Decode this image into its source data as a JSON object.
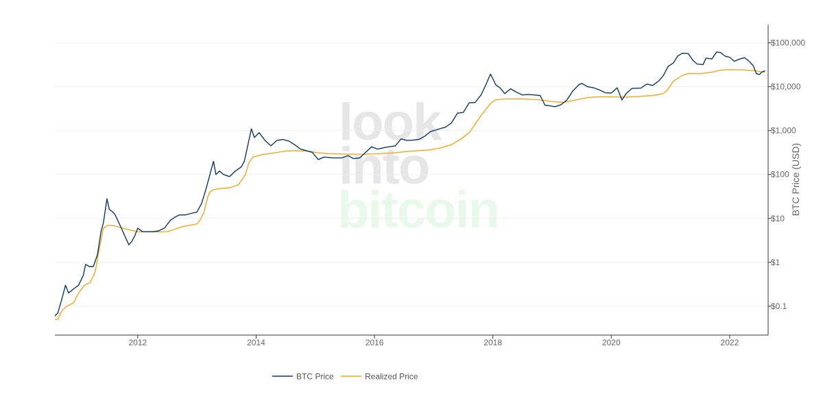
{
  "chart_data": {
    "type": "line",
    "title": "",
    "xlabel": "",
    "ylabel": "BTC Price (USD)",
    "y_scale": "log",
    "ylim": [
      0.022,
      260000
    ],
    "xlim": [
      2010.6,
      2022.65
    ],
    "grid": true,
    "legend_position": "bottom-center",
    "x_ticks": [
      {
        "value": 2012,
        "label": "2012"
      },
      {
        "value": 2014,
        "label": "2014"
      },
      {
        "value": 2016,
        "label": "2016"
      },
      {
        "value": 2018,
        "label": "2018"
      },
      {
        "value": 2020,
        "label": "2020"
      },
      {
        "value": 2022,
        "label": "2022"
      }
    ],
    "y_ticks": [
      {
        "value": 0.1,
        "label": "$0.1"
      },
      {
        "value": 1,
        "label": "$1"
      },
      {
        "value": 10,
        "label": "$10"
      },
      {
        "value": 100,
        "label": "$100"
      },
      {
        "value": 1000,
        "label": "$1,000"
      },
      {
        "value": 10000,
        "label": "$10,000"
      },
      {
        "value": 100000,
        "label": "$100,000"
      }
    ],
    "series": [
      {
        "name": "BTC Price",
        "color": "#0b3766",
        "points": [
          [
            2010.6,
            0.06
          ],
          [
            2010.65,
            0.07
          ],
          [
            2010.72,
            0.15
          ],
          [
            2010.78,
            0.3
          ],
          [
            2010.83,
            0.2
          ],
          [
            2010.92,
            0.25
          ],
          [
            2011.0,
            0.3
          ],
          [
            2011.08,
            0.5
          ],
          [
            2011.12,
            0.9
          ],
          [
            2011.18,
            0.8
          ],
          [
            2011.25,
            0.8
          ],
          [
            2011.32,
            1.5
          ],
          [
            2011.38,
            5
          ],
          [
            2011.42,
            8
          ],
          [
            2011.45,
            15
          ],
          [
            2011.48,
            28
          ],
          [
            2011.52,
            16
          ],
          [
            2011.58,
            14
          ],
          [
            2011.62,
            12
          ],
          [
            2011.68,
            8
          ],
          [
            2011.75,
            5
          ],
          [
            2011.8,
            3.5
          ],
          [
            2011.85,
            2.5
          ],
          [
            2011.9,
            3
          ],
          [
            2011.95,
            4
          ],
          [
            2012.0,
            6
          ],
          [
            2012.08,
            5
          ],
          [
            2012.15,
            5
          ],
          [
            2012.25,
            5
          ],
          [
            2012.35,
            5.2
          ],
          [
            2012.45,
            6
          ],
          [
            2012.55,
            9
          ],
          [
            2012.62,
            10.5
          ],
          [
            2012.7,
            12
          ],
          [
            2012.8,
            12
          ],
          [
            2012.9,
            13
          ],
          [
            2013.0,
            14
          ],
          [
            2013.08,
            22
          ],
          [
            2013.15,
            45
          ],
          [
            2013.22,
            100
          ],
          [
            2013.28,
            200
          ],
          [
            2013.32,
            100
          ],
          [
            2013.38,
            120
          ],
          [
            2013.45,
            100
          ],
          [
            2013.55,
            90
          ],
          [
            2013.65,
            120
          ],
          [
            2013.75,
            150
          ],
          [
            2013.8,
            200
          ],
          [
            2013.85,
            400
          ],
          [
            2013.92,
            1100
          ],
          [
            2013.97,
            700
          ],
          [
            2014.05,
            900
          ],
          [
            2014.15,
            600
          ],
          [
            2014.25,
            450
          ],
          [
            2014.35,
            600
          ],
          [
            2014.45,
            630
          ],
          [
            2014.55,
            580
          ],
          [
            2014.65,
            480
          ],
          [
            2014.75,
            380
          ],
          [
            2014.85,
            350
          ],
          [
            2014.95,
            320
          ],
          [
            2015.05,
            220
          ],
          [
            2015.15,
            250
          ],
          [
            2015.3,
            240
          ],
          [
            2015.45,
            240
          ],
          [
            2015.55,
            270
          ],
          [
            2015.65,
            230
          ],
          [
            2015.75,
            240
          ],
          [
            2015.85,
            320
          ],
          [
            2015.95,
            430
          ],
          [
            2016.05,
            380
          ],
          [
            2016.2,
            420
          ],
          [
            2016.35,
            450
          ],
          [
            2016.45,
            650
          ],
          [
            2016.55,
            600
          ],
          [
            2016.65,
            610
          ],
          [
            2016.75,
            630
          ],
          [
            2016.85,
            750
          ],
          [
            2016.95,
            960
          ],
          [
            2017.0,
            1000
          ],
          [
            2017.1,
            1100
          ],
          [
            2017.2,
            1200
          ],
          [
            2017.3,
            1500
          ],
          [
            2017.4,
            2500
          ],
          [
            2017.5,
            2600
          ],
          [
            2017.6,
            4300
          ],
          [
            2017.7,
            4400
          ],
          [
            2017.8,
            6500
          ],
          [
            2017.88,
            11000
          ],
          [
            2017.96,
            19500
          ],
          [
            2018.05,
            11000
          ],
          [
            2018.12,
            9500
          ],
          [
            2018.2,
            7000
          ],
          [
            2018.3,
            9000
          ],
          [
            2018.4,
            7500
          ],
          [
            2018.5,
            6500
          ],
          [
            2018.6,
            6700
          ],
          [
            2018.7,
            6500
          ],
          [
            2018.8,
            6300
          ],
          [
            2018.88,
            3800
          ],
          [
            2018.96,
            3700
          ],
          [
            2019.05,
            3500
          ],
          [
            2019.15,
            3900
          ],
          [
            2019.25,
            5000
          ],
          [
            2019.35,
            8000
          ],
          [
            2019.45,
            11000
          ],
          [
            2019.5,
            12000
          ],
          [
            2019.6,
            10000
          ],
          [
            2019.7,
            9500
          ],
          [
            2019.8,
            8500
          ],
          [
            2019.9,
            7300
          ],
          [
            2020.0,
            7200
          ],
          [
            2020.1,
            9500
          ],
          [
            2020.18,
            5000
          ],
          [
            2020.25,
            7000
          ],
          [
            2020.35,
            9200
          ],
          [
            2020.5,
            9300
          ],
          [
            2020.6,
            11500
          ],
          [
            2020.7,
            10700
          ],
          [
            2020.8,
            13500
          ],
          [
            2020.88,
            18000
          ],
          [
            2020.96,
            29000
          ],
          [
            2021.05,
            35000
          ],
          [
            2021.12,
            50000
          ],
          [
            2021.2,
            58000
          ],
          [
            2021.3,
            57000
          ],
          [
            2021.38,
            40000
          ],
          [
            2021.45,
            33000
          ],
          [
            2021.55,
            32000
          ],
          [
            2021.6,
            45000
          ],
          [
            2021.7,
            43000
          ],
          [
            2021.78,
            62000
          ],
          [
            2021.85,
            60000
          ],
          [
            2021.92,
            50000
          ],
          [
            2022.0,
            47000
          ],
          [
            2022.08,
            38000
          ],
          [
            2022.15,
            42000
          ],
          [
            2022.25,
            46000
          ],
          [
            2022.33,
            38000
          ],
          [
            2022.4,
            30000
          ],
          [
            2022.45,
            20000
          ],
          [
            2022.5,
            19000
          ],
          [
            2022.55,
            22000
          ],
          [
            2022.6,
            23000
          ]
        ]
      },
      {
        "name": "Realized Price",
        "color": "#f7a41d",
        "points": [
          [
            2010.6,
            0.05
          ],
          [
            2010.65,
            0.05
          ],
          [
            2010.72,
            0.08
          ],
          [
            2010.8,
            0.1
          ],
          [
            2010.92,
            0.12
          ],
          [
            2011.0,
            0.2
          ],
          [
            2011.1,
            0.3
          ],
          [
            2011.2,
            0.35
          ],
          [
            2011.28,
            0.6
          ],
          [
            2011.35,
            2
          ],
          [
            2011.42,
            6
          ],
          [
            2011.5,
            7
          ],
          [
            2011.6,
            6.8
          ],
          [
            2011.75,
            6
          ],
          [
            2011.85,
            5.5
          ],
          [
            2012.0,
            5
          ],
          [
            2012.25,
            4.9
          ],
          [
            2012.5,
            5
          ],
          [
            2012.6,
            5.5
          ],
          [
            2012.75,
            6.5
          ],
          [
            2013.0,
            7.5
          ],
          [
            2013.05,
            9
          ],
          [
            2013.12,
            14
          ],
          [
            2013.18,
            30
          ],
          [
            2013.22,
            40
          ],
          [
            2013.28,
            45
          ],
          [
            2013.4,
            48
          ],
          [
            2013.55,
            50
          ],
          [
            2013.7,
            58
          ],
          [
            2013.82,
            100
          ],
          [
            2013.88,
            190
          ],
          [
            2013.95,
            250
          ],
          [
            2014.1,
            285
          ],
          [
            2014.3,
            310
          ],
          [
            2014.5,
            345
          ],
          [
            2014.7,
            350
          ],
          [
            2014.9,
            340
          ],
          [
            2015.0,
            320
          ],
          [
            2015.2,
            300
          ],
          [
            2015.4,
            295
          ],
          [
            2015.6,
            290
          ],
          [
            2015.8,
            290
          ],
          [
            2016.0,
            295
          ],
          [
            2016.3,
            310
          ],
          [
            2016.6,
            340
          ],
          [
            2016.9,
            360
          ],
          [
            2017.1,
            400
          ],
          [
            2017.3,
            480
          ],
          [
            2017.5,
            700
          ],
          [
            2017.6,
            900
          ],
          [
            2017.7,
            1400
          ],
          [
            2017.8,
            2200
          ],
          [
            2017.88,
            3000
          ],
          [
            2017.96,
            4200
          ],
          [
            2018.05,
            5100
          ],
          [
            2018.25,
            5300
          ],
          [
            2018.5,
            5300
          ],
          [
            2018.75,
            5100
          ],
          [
            2019.0,
            4600
          ],
          [
            2019.2,
            4400
          ],
          [
            2019.4,
            5000
          ],
          [
            2019.6,
            5700
          ],
          [
            2019.8,
            5900
          ],
          [
            2020.0,
            5900
          ],
          [
            2020.25,
            5800
          ],
          [
            2020.5,
            6100
          ],
          [
            2020.7,
            6300
          ],
          [
            2020.88,
            7000
          ],
          [
            2020.95,
            8500
          ],
          [
            2021.05,
            13500
          ],
          [
            2021.2,
            18000
          ],
          [
            2021.3,
            20000
          ],
          [
            2021.5,
            19800
          ],
          [
            2021.7,
            21500
          ],
          [
            2021.85,
            24000
          ],
          [
            2022.0,
            24500
          ],
          [
            2022.2,
            24300
          ],
          [
            2022.4,
            23500
          ],
          [
            2022.5,
            22300
          ],
          [
            2022.6,
            21500
          ]
        ]
      }
    ]
  },
  "watermark": {
    "line1": "look",
    "line2": "into",
    "line3": "bitcoin",
    "color_gray": "#e6e6e6",
    "color_green": "#e8f8ea"
  },
  "colors": {
    "grid": "#eeeeee",
    "axis": "#333333"
  }
}
